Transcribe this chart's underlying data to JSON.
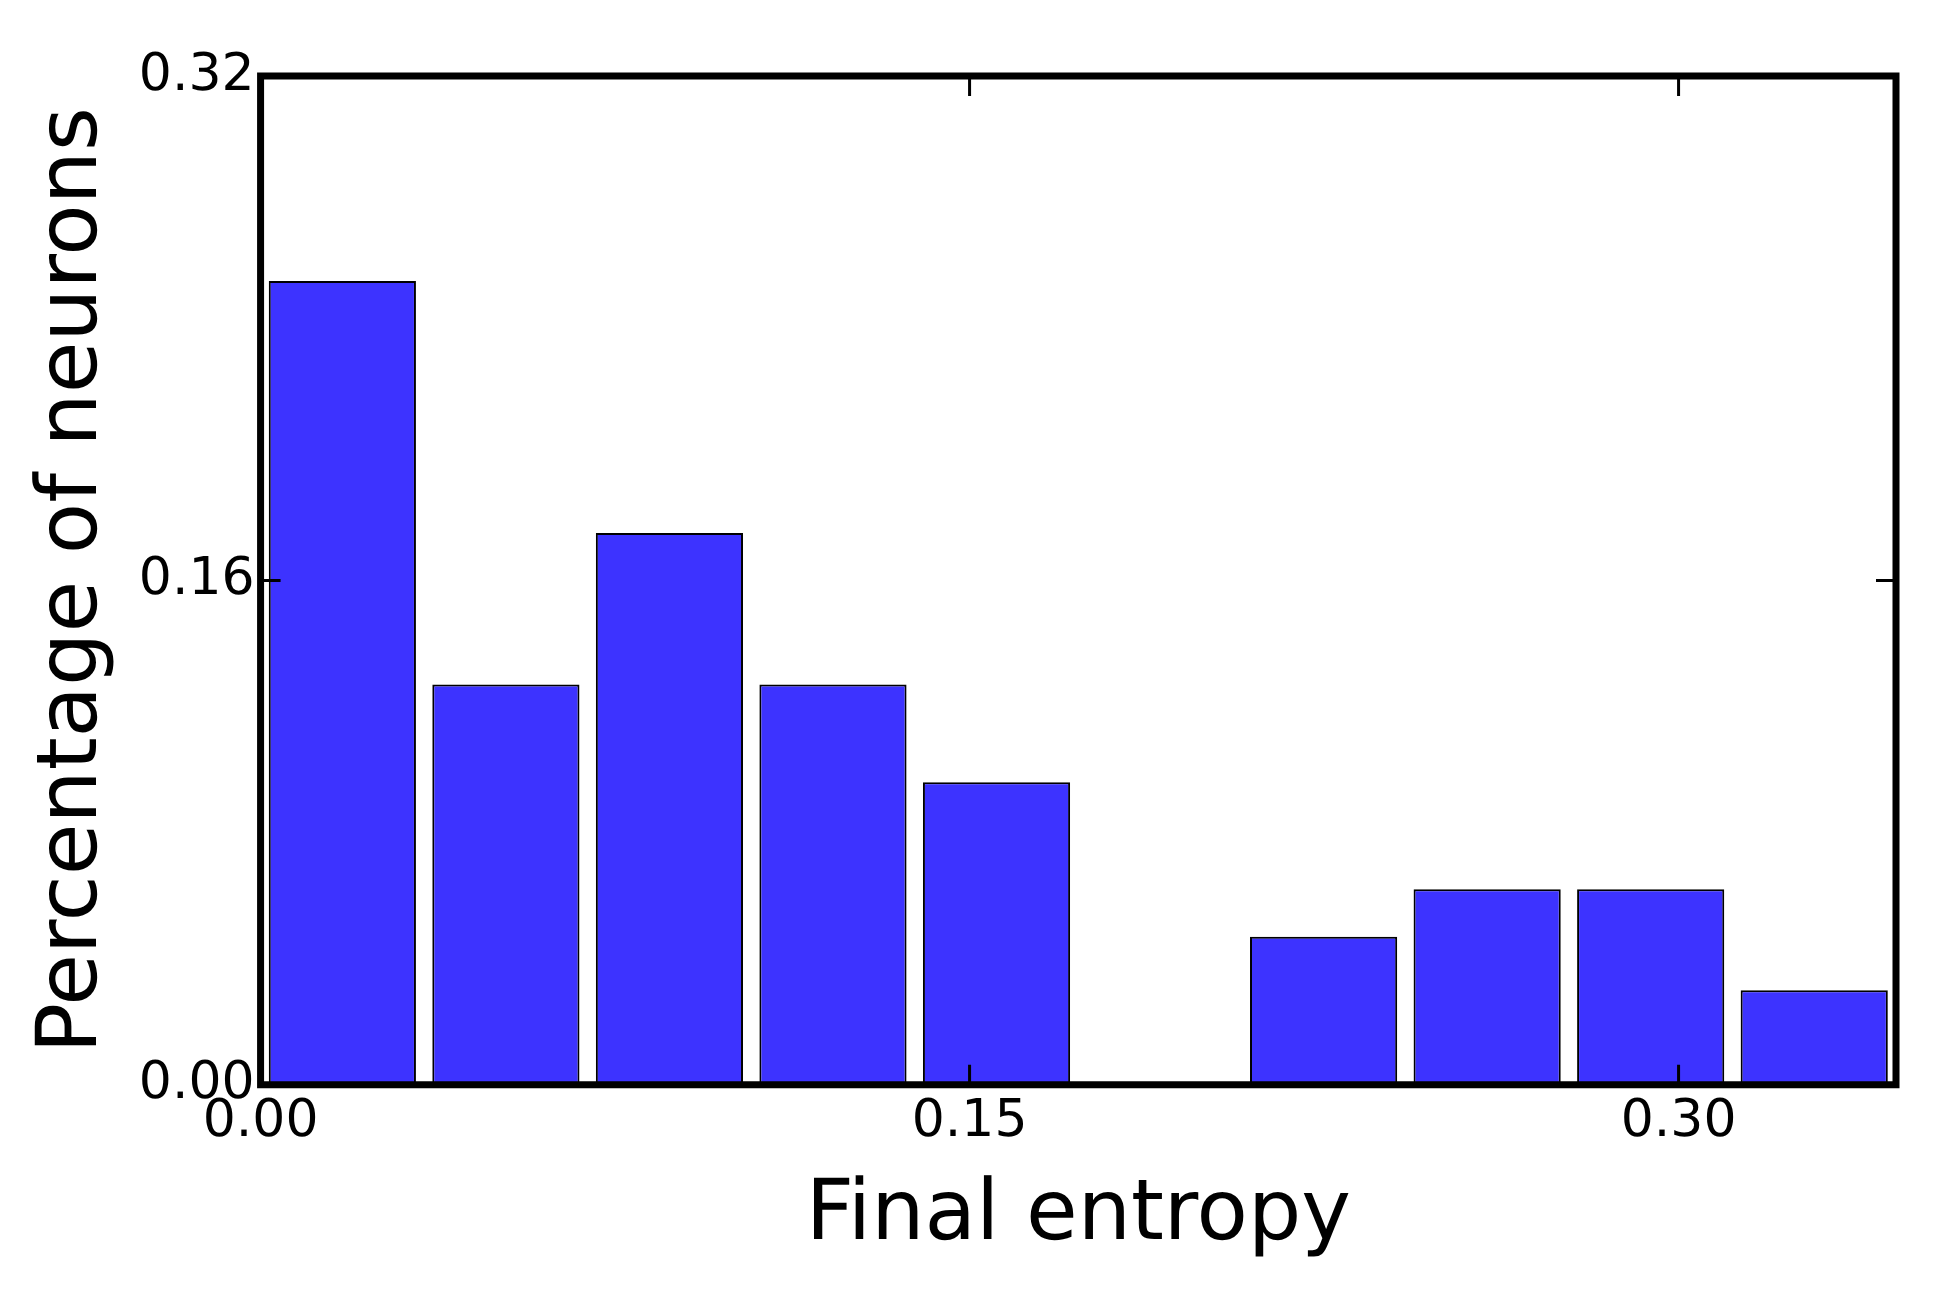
{
  "chart_data": {
    "type": "histogram",
    "xlabel": "Final entropy",
    "ylabel": "Percentage of neurons",
    "bins": [
      0,
      0.0346,
      0.0692,
      0.1038,
      0.1384,
      0.173,
      0.2076,
      0.2422,
      0.2768,
      0.3114,
      0.346
    ],
    "values": [
      0.255,
      0.127,
      0.175,
      0.127,
      0.096,
      0,
      0.047,
      0.062,
      0.062,
      0.03
    ],
    "color": "#3d33ff",
    "xlim": [
      0,
      0.346
    ],
    "xticks": [
      {
        "value": 0,
        "label": "0.00"
      },
      {
        "value": 0.15,
        "label": "0.15"
      },
      {
        "value": 0.3,
        "label": "0.30"
      }
    ],
    "ylim": [
      0,
      0.32
    ],
    "yticks": [
      {
        "value": 0,
        "label": "0.00"
      },
      {
        "value": 0.16,
        "label": "0.16"
      },
      {
        "value": 0.32,
        "label": "0.32"
      }
    ],
    "grid": false,
    "legend": false
  }
}
